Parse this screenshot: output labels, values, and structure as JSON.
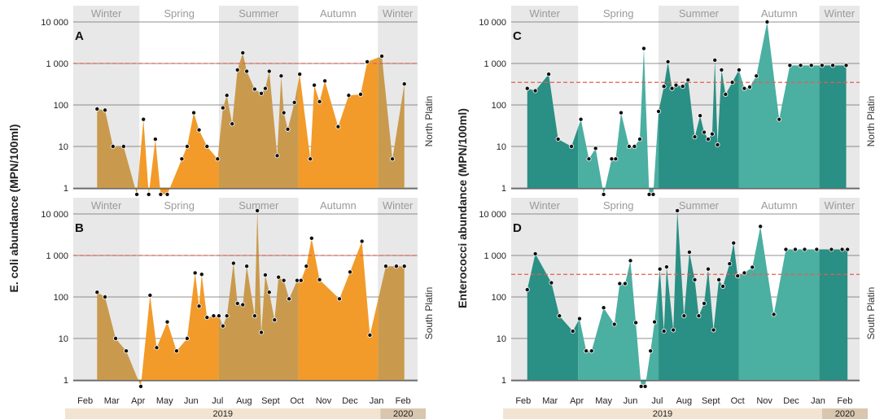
{
  "ylabel_left": "E. coli abundance (MPN/100ml)",
  "ylabel_right": "Enterococci  abundance (MPN/100ml)",
  "y_tick_labels": [
    "1",
    "10",
    "100",
    "1 000",
    "10 000"
  ],
  "month_labels": [
    "Feb",
    "Mar",
    "Apr",
    "May",
    "Jun",
    "Jul",
    "Aug",
    "Sept",
    "Oct",
    "Nov",
    "Dec",
    "Jan",
    "Feb"
  ],
  "year_labels": [
    "2019",
    "2020"
  ],
  "colors": {
    "ecoli_light": "#F29B2A",
    "ecoli_dark": "#C99A4D",
    "entero_light": "#4BAFA1",
    "entero_dark": "#2A8F84",
    "threshold": "#E06050",
    "season_shade": "#E8E8E8",
    "season_label": "#9A9A9A",
    "year_bar_2019": "#F2E4D0",
    "year_bar_2020": "#D9C6AE"
  },
  "chart_data": [
    {
      "id": "A",
      "panel_label": "A",
      "type": "area",
      "side_label": "North Platin",
      "y_scale": "log",
      "ylim": [
        1,
        10000
      ],
      "threshold": 1000,
      "seasons": [
        {
          "label": "Winter",
          "start": 0,
          "end": 2.5,
          "shaded": true
        },
        {
          "label": "Spring",
          "start": 2.5,
          "end": 5.5,
          "shaded": false
        },
        {
          "label": "Summer",
          "start": 5.5,
          "end": 8.5,
          "shaded": true
        },
        {
          "label": "Autumn",
          "start": 8.5,
          "end": 11.5,
          "shaded": false
        },
        {
          "label": "Winter",
          "start": 11.5,
          "end": 13,
          "shaded": true
        }
      ],
      "x": [
        0.9,
        1.2,
        1.5,
        1.9,
        2.4,
        2.65,
        2.85,
        3.1,
        3.3,
        3.55,
        4.1,
        4.3,
        4.55,
        4.75,
        5.05,
        5.45,
        5.65,
        5.8,
        6.0,
        6.2,
        6.4,
        6.55,
        6.85,
        7.1,
        7.25,
        7.4,
        7.7,
        7.85,
        7.95,
        8.1,
        8.35,
        8.55,
        8.95,
        9.1,
        9.3,
        9.5,
        10.0,
        10.4,
        10.85,
        11.1,
        11.65,
        12.05,
        12.5
      ],
      "values": [
        80,
        75,
        10,
        10,
        0.7,
        45,
        0.7,
        15,
        0.7,
        0.7,
        5,
        10,
        65,
        25,
        10,
        5,
        85,
        170,
        35,
        700,
        1800,
        650,
        240,
        190,
        250,
        650,
        6,
        500,
        65,
        26,
        115,
        550,
        5,
        300,
        120,
        380,
        30,
        170,
        180,
        1100,
        1500,
        5,
        320
      ]
    },
    {
      "id": "B",
      "panel_label": "B",
      "type": "area",
      "side_label": "South Platin",
      "y_scale": "log",
      "ylim": [
        1,
        10000
      ],
      "threshold": 1000,
      "seasons": [
        {
          "label": "Winter",
          "start": 0,
          "end": 2.5,
          "shaded": true
        },
        {
          "label": "Spring",
          "start": 2.5,
          "end": 5.5,
          "shaded": false
        },
        {
          "label": "Summer",
          "start": 5.5,
          "end": 8.5,
          "shaded": true
        },
        {
          "label": "Autumn",
          "start": 8.5,
          "end": 11.5,
          "shaded": false
        },
        {
          "label": "Winter",
          "start": 11.5,
          "end": 13,
          "shaded": true
        }
      ],
      "x": [
        0.9,
        1.2,
        1.6,
        2.0,
        2.55,
        2.9,
        3.15,
        3.55,
        3.9,
        4.3,
        4.6,
        4.75,
        4.85,
        5.05,
        5.3,
        5.5,
        5.65,
        5.8,
        6.05,
        6.2,
        6.4,
        6.55,
        6.85,
        6.95,
        7.1,
        7.25,
        7.4,
        7.6,
        7.75,
        7.95,
        8.15,
        8.45,
        8.6,
        8.8,
        9.0,
        9.3,
        10.05,
        10.45,
        10.9,
        11.2,
        11.8,
        12.2,
        12.5
      ],
      "values": [
        130,
        100,
        10,
        5,
        0.7,
        110,
        6,
        25,
        5,
        10,
        380,
        60,
        350,
        32,
        35,
        35,
        20,
        35,
        650,
        70,
        65,
        550,
        35,
        12000,
        14,
        340,
        130,
        28,
        300,
        250,
        90,
        250,
        250,
        550,
        2600,
        260,
        90,
        400,
        2200,
        12,
        550,
        550,
        550
      ]
    },
    {
      "id": "C",
      "panel_label": "C",
      "type": "area",
      "side_label": "North Platin",
      "y_scale": "log",
      "ylim": [
        1,
        10000
      ],
      "threshold": 350,
      "seasons": [
        {
          "label": "Winter",
          "start": 0,
          "end": 2.5,
          "shaded": true
        },
        {
          "label": "Spring",
          "start": 2.5,
          "end": 5.5,
          "shaded": false
        },
        {
          "label": "Summer",
          "start": 5.5,
          "end": 8.5,
          "shaded": true
        },
        {
          "label": "Autumn",
          "start": 8.5,
          "end": 11.5,
          "shaded": false
        },
        {
          "label": "Winter",
          "start": 11.5,
          "end": 13,
          "shaded": true
        }
      ],
      "x": [
        0.6,
        0.9,
        1.4,
        1.75,
        2.25,
        2.6,
        2.9,
        3.15,
        3.45,
        3.75,
        3.9,
        4.1,
        4.4,
        4.6,
        4.8,
        4.95,
        5.15,
        5.3,
        5.5,
        5.7,
        5.85,
        6.0,
        6.15,
        6.4,
        6.6,
        6.85,
        7.05,
        7.2,
        7.35,
        7.5,
        7.6,
        7.7,
        7.85,
        8.0,
        8.25,
        8.5,
        8.7,
        8.9,
        9.15,
        9.55,
        10.0,
        10.4,
        10.8,
        11.2,
        11.6,
        12.0,
        12.5
      ],
      "values": [
        250,
        220,
        550,
        15,
        10,
        45,
        5,
        9,
        0.7,
        5,
        5,
        65,
        10,
        10,
        15,
        2300,
        0.7,
        0.7,
        70,
        280,
        1100,
        250,
        300,
        280,
        400,
        17,
        55,
        22,
        15,
        20,
        1200,
        11,
        700,
        180,
        350,
        700,
        250,
        270,
        500,
        10000,
        45,
        900,
        900,
        900,
        900,
        900,
        900
      ]
    },
    {
      "id": "D",
      "panel_label": "D",
      "type": "area",
      "side_label": "South Platin",
      "y_scale": "log",
      "ylim": [
        1,
        10000
      ],
      "threshold": 350,
      "seasons": [
        {
          "label": "Winter",
          "start": 0,
          "end": 2.5,
          "shaded": true
        },
        {
          "label": "Spring",
          "start": 2.5,
          "end": 5.5,
          "shaded": false
        },
        {
          "label": "Summer",
          "start": 5.5,
          "end": 8.5,
          "shaded": true
        },
        {
          "label": "Autumn",
          "start": 8.5,
          "end": 11.5,
          "shaded": false
        },
        {
          "label": "Winter",
          "start": 11.5,
          "end": 13,
          "shaded": true
        }
      ],
      "x": [
        0.6,
        0.9,
        1.5,
        1.8,
        2.3,
        2.55,
        2.8,
        3.0,
        3.45,
        3.85,
        4.05,
        4.25,
        4.45,
        4.65,
        4.85,
        5.0,
        5.2,
        5.35,
        5.55,
        5.7,
        5.8,
        6.05,
        6.2,
        6.45,
        6.65,
        6.85,
        7.0,
        7.2,
        7.35,
        7.55,
        7.75,
        7.9,
        8.15,
        8.3,
        8.45,
        8.7,
        9.0,
        9.3,
        9.8,
        10.25,
        10.6,
        10.95,
        11.4,
        11.95,
        12.35,
        12.55
      ],
      "values": [
        150,
        1100,
        220,
        35,
        15,
        30,
        5,
        5,
        55,
        22,
        210,
        210,
        750,
        24,
        0.7,
        0.7,
        5,
        25,
        470,
        15,
        530,
        16,
        12000,
        35,
        1200,
        260,
        35,
        70,
        470,
        16,
        260,
        180,
        630,
        2000,
        320,
        380,
        520,
        5000,
        38,
        1400,
        1400,
        1400,
        1400,
        1400,
        1400,
        1400
      ]
    }
  ]
}
